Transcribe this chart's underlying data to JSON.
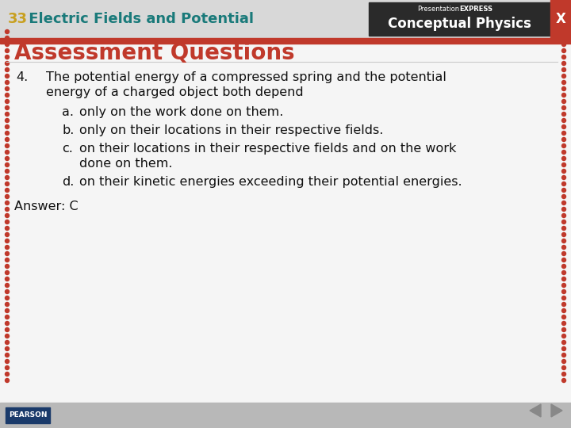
{
  "header_bg_color": "#d8d8d8",
  "header_text_number": "33",
  "header_text_number_color": "#c8a020",
  "header_text_title": " Electric Fields and Potential",
  "header_text_title_color": "#1a7a7a",
  "header_brand_top": "PresentationEXPRESS",
  "header_brand_top_plain": "Presentation",
  "header_brand_top_bold": "EXPRESS",
  "header_brand_bottom": "Conceptual Physics",
  "header_brand_color": "#ffffff",
  "red_bar_color": "#c0392b",
  "slide_bg_color": "#f5f5f5",
  "border_dot_color": "#c0392b",
  "title_text": "Assessment Questions",
  "title_color": "#c0392b",
  "question_number": "4.",
  "question_line1": "The potential energy of a compressed spring and the potential",
  "question_line2": "energy of a charged object both depend",
  "opt_a_label": "a.",
  "opt_a_text": "only on the work done on them.",
  "opt_b_label": "b.",
  "opt_b_text": "only on their locations in their respective fields.",
  "opt_c_label": "c.",
  "opt_c_text1": "on their locations in their respective fields and on the work",
  "opt_c_text2": "done on them.",
  "opt_d_label": "d.",
  "opt_d_text": "on their kinetic energies exceeding their potential energies.",
  "answer_text": "Answer: C",
  "footer_bg_color": "#b8b8b8",
  "pearson_text": "PEARSON",
  "pearson_box_color": "#1a3a6a",
  "x_button_color": "#c0392b",
  "x_button_text": "X",
  "main_text_color": "#111111",
  "brand_box_color": "#2a2a2a"
}
